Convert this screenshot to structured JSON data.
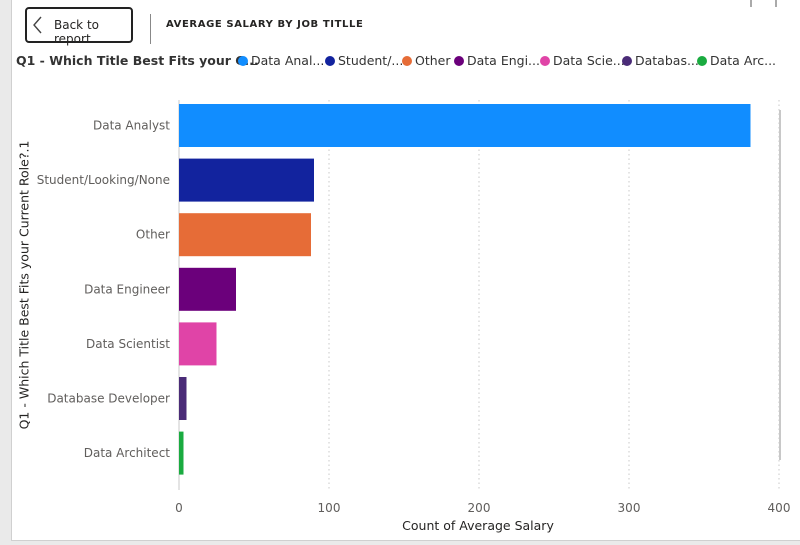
{
  "header": {
    "back_label": "Back to report",
    "title": "AVERAGE SALARY BY JOB TITLLE"
  },
  "legend": {
    "title": "Q1 - Which Title Best Fits your C...",
    "items": [
      {
        "label": "Data Anal...",
        "color": "#118DFF"
      },
      {
        "label": "Student/...",
        "color": "#12239E"
      },
      {
        "label": "Other",
        "color": "#E66C37"
      },
      {
        "label": "Data Engi...",
        "color": "#6B007B"
      },
      {
        "label": "Data Scie...",
        "color": "#E044A7"
      },
      {
        "label": "Databas...",
        "color": "#4A2B77"
      },
      {
        "label": "Data Arc...",
        "color": "#1AAB40"
      }
    ]
  },
  "chart_data": {
    "type": "bar",
    "orientation": "horizontal",
    "categories": [
      "Data Analyst",
      "Student/Looking/None",
      "Other",
      "Data Engineer",
      "Data Scientist",
      "Database Developer",
      "Data Architect"
    ],
    "values": [
      381,
      90,
      88,
      38,
      25,
      5,
      3
    ],
    "colors": [
      "#118DFF",
      "#12239E",
      "#E66C37",
      "#6B007B",
      "#E044A7",
      "#4A2B77",
      "#1AAB40"
    ],
    "xlabel": "Count of Average Salary",
    "ylabel": "Q1 - Which Title Best Fits your Current Role?.1",
    "xlim": [
      0,
      400
    ],
    "xticks": [
      0,
      100,
      200,
      300,
      400
    ],
    "grid": "vertical-dotted"
  }
}
